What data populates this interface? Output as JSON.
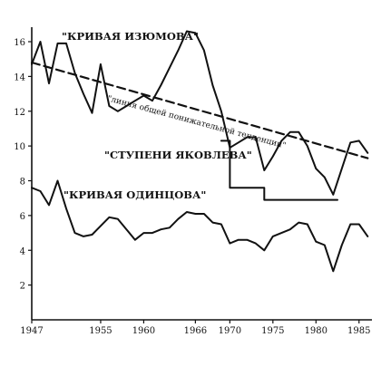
{
  "chart_data": {
    "type": "line",
    "title": "",
    "xlabel": "",
    "ylabel": "",
    "xlim": [
      1947,
      1986.5
    ],
    "ylim": [
      0,
      17.5
    ],
    "x_ticks": [
      1947,
      1955,
      1960,
      1966,
      1970,
      1975,
      1980,
      1985
    ],
    "y_ticks": [
      2,
      4,
      6,
      8,
      10,
      12,
      14,
      16
    ],
    "grid": false,
    "legend": "none",
    "annotations": {
      "izyumov": "\"КРИВАЯ ИЗЮМОВА\"",
      "odintsov": "\"КРИВАЯ ОДИНЦОВА\"",
      "yakovlev": "\"СТУПЕНИ ЯКОВЛЕВА\"",
      "trend": "\"линия общей понижательной тенденции\""
    },
    "series": [
      {
        "key": "izyumov",
        "style": "solid",
        "x": [
          1947,
          1948,
          1949,
          1950,
          1951,
          1952,
          1953,
          1954,
          1955,
          1956,
          1957,
          1958,
          1959,
          1960,
          1961,
          1962,
          1963,
          1964,
          1965,
          1966,
          1967,
          1968,
          1969,
          1970,
          1971,
          1972,
          1973,
          1974,
          1975,
          1976,
          1977,
          1978,
          1979,
          1980,
          1981,
          1982,
          1983,
          1984,
          1985,
          1986
        ],
        "values": [
          14.7,
          16.0,
          13.6,
          15.9,
          15.9,
          14.2,
          13.0,
          11.9,
          14.7,
          12.3,
          12.0,
          12.3,
          12.6,
          12.9,
          12.6,
          13.5,
          14.5,
          15.5,
          16.6,
          16.5,
          15.5,
          13.5,
          12.0,
          9.9,
          10.2,
          10.5,
          10.5,
          8.6,
          9.4,
          10.3,
          10.8,
          10.8,
          10.0,
          8.7,
          8.2,
          7.2,
          8.7,
          10.2,
          10.3,
          9.6
        ]
      },
      {
        "key": "odintsov",
        "style": "solid",
        "x": [
          1947,
          1948,
          1949,
          1950,
          1951,
          1952,
          1953,
          1954,
          1955,
          1956,
          1957,
          1958,
          1959,
          1960,
          1961,
          1962,
          1963,
          1964,
          1965,
          1966,
          1967,
          1968,
          1969,
          1970,
          1971,
          1972,
          1973,
          1974,
          1975,
          1976,
          1977,
          1978,
          1979,
          1980,
          1981,
          1982,
          1983,
          1984,
          1985,
          1986
        ],
        "values": [
          7.6,
          7.4,
          6.6,
          8.0,
          6.4,
          5.0,
          4.8,
          4.9,
          5.4,
          5.9,
          5.8,
          5.2,
          4.6,
          5.0,
          5.0,
          5.2,
          5.3,
          5.8,
          6.2,
          6.1,
          6.1,
          5.6,
          5.5,
          4.4,
          4.6,
          4.6,
          4.4,
          4.0,
          4.8,
          5.0,
          5.2,
          5.6,
          5.5,
          4.5,
          4.3,
          2.8,
          4.3,
          5.5,
          5.5,
          4.8
        ]
      },
      {
        "key": "yakovlev",
        "style": "step",
        "x": [
          1969,
          1970,
          1970,
          1974,
          1974,
          1982.5
        ],
        "values": [
          10.3,
          10.3,
          7.6,
          7.6,
          6.9,
          6.9
        ]
      },
      {
        "key": "trend",
        "style": "dashed",
        "x": [
          1947,
          1986
        ],
        "values": [
          14.8,
          9.3
        ]
      }
    ]
  }
}
